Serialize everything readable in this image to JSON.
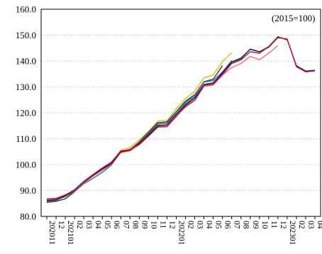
{
  "chart_data": {
    "type": "line",
    "title": "",
    "xlabel": "",
    "ylabel": "",
    "annotation": "(2015=100)",
    "ylim": [
      80,
      160
    ],
    "yticks": [
      80,
      90,
      100,
      110,
      120,
      130,
      140,
      150,
      160
    ],
    "ytick_labels": [
      "80.0",
      "90.0",
      "100.0",
      "110.0",
      "120.0",
      "130.0",
      "140.0",
      "150.0",
      "160.0"
    ],
    "grid": "horizontal dotted",
    "legend": "none",
    "x": [
      "2020-11",
      "2020-12",
      "2021-01",
      "2021-02",
      "2021-03",
      "2021-04",
      "2021-05",
      "2021-06",
      "2021-07",
      "2021-08",
      "2021-09",
      "2021-10",
      "2021-11",
      "2021-12",
      "2022-01",
      "2022-02",
      "2022-03",
      "2022-04",
      "2022-05",
      "2022-06",
      "2022-07",
      "2022-08",
      "2022-09",
      "2022-10",
      "2022-11",
      "2022-12",
      "2023-01",
      "2023-02",
      "2023-03",
      "2023-04"
    ],
    "x_tick_labels": [
      "202011",
      "12",
      "202101",
      "02",
      "03",
      "04",
      "05",
      "06",
      "07",
      "08",
      "09",
      "10",
      "11",
      "12",
      "202201",
      "02",
      "03",
      "04",
      "05",
      "06",
      "07",
      "08",
      "09",
      "10",
      "11",
      "12",
      "202301",
      "02",
      "03",
      "04"
    ],
    "series": [
      {
        "color": "#f2b705",
        "values": [
          86.0,
          86.5,
          87.6,
          89.6,
          92.8,
          95.5,
          98.0,
          100.5,
          105.6,
          106.6,
          109.5,
          112.8,
          116.8,
          117.0,
          121.5,
          125.5,
          128.4,
          133.5,
          134.6,
          139.8,
          143.2,
          null,
          null,
          null,
          null,
          null,
          null,
          null,
          null,
          null
        ]
      },
      {
        "color": "#3a3a3a",
        "values": [
          85.4,
          85.8,
          86.8,
          89.5,
          93.2,
          96.0,
          98.5,
          100.5,
          105.2,
          105.8,
          108.8,
          112.5,
          116.2,
          116.5,
          120.5,
          124.5,
          127.0,
          132.0,
          133.0,
          138.2,
          null,
          null,
          null,
          null,
          null,
          null,
          null,
          null,
          null,
          null
        ]
      },
      {
        "color": "#2a6aa8",
        "values": [
          85.8,
          86.2,
          87.8,
          89.6,
          92.6,
          94.7,
          97.0,
          99.8,
          104.9,
          105.7,
          108.8,
          112.0,
          115.7,
          116.0,
          120.3,
          123.9,
          126.8,
          131.9,
          132.4,
          135.8,
          140.2,
          null,
          null,
          null,
          null,
          null,
          null,
          null,
          null,
          null
        ]
      },
      {
        "color": "#2e7d32",
        "values": [
          86.4,
          86.8,
          88.3,
          90.1,
          93.1,
          95.6,
          97.9,
          100.2,
          105.0,
          105.9,
          108.4,
          111.7,
          115.2,
          115.3,
          119.6,
          123.3,
          126.1,
          131.0,
          131.6,
          135.3,
          139.7,
          141.2,
          144.5,
          143.5,
          145.6,
          149.4,
          148.1,
          null,
          null,
          null
        ]
      },
      {
        "color": "#e57373",
        "values": [
          86.5,
          86.7,
          88.0,
          90.0,
          93.0,
          95.5,
          97.8,
          100.0,
          104.6,
          105.3,
          107.6,
          111.0,
          114.4,
          115.0,
          118.9,
          122.2,
          124.8,
          130.2,
          130.7,
          134.6,
          137.5,
          139.0,
          141.8,
          140.5,
          143.0,
          146.0,
          null,
          null,
          null,
          null
        ]
      },
      {
        "color": "#1a1a5e",
        "values": [
          86.1,
          86.4,
          87.9,
          90.1,
          93.3,
          95.9,
          98.3,
          100.4,
          104.9,
          105.6,
          108.2,
          111.5,
          114.9,
          115.4,
          119.4,
          123.0,
          125.7,
          130.9,
          131.5,
          135.4,
          139.5,
          140.9,
          144.6,
          143.6,
          145.3,
          149.2,
          148.3,
          138.2,
          136.1,
          136.4
        ]
      },
      {
        "color": "#c8102e",
        "values": [
          86.7,
          87.0,
          88.2,
          90.3,
          93.5,
          96.2,
          98.7,
          101.0,
          105.2,
          105.8,
          107.8,
          111.0,
          114.5,
          114.6,
          118.6,
          122.5,
          124.9,
          130.6,
          131.0,
          134.8,
          139.0,
          140.4,
          143.6,
          143.0,
          145.5,
          149.0,
          148.5,
          137.8,
          135.8,
          136.2
        ]
      }
    ]
  }
}
